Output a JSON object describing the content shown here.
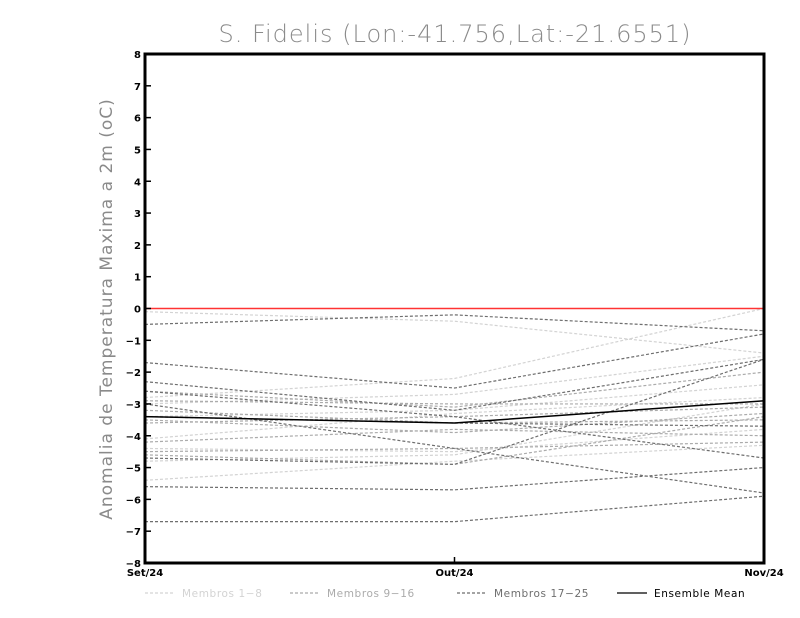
{
  "chart_data": {
    "type": "line",
    "title": "S. Fidelis (Lon:-41.756,Lat:-21.6551)",
    "ylabel": "Anomalia de Temperatura Maxima a 2m (oC)",
    "xlabel": "",
    "categories": [
      "Set/24",
      "Out/24",
      "Nov/24"
    ],
    "ylim": [
      -8,
      8
    ],
    "yticks": [
      -8,
      -7,
      -6,
      -5,
      -4,
      -3,
      -2,
      -1,
      0,
      1,
      2,
      3,
      4,
      5,
      6,
      7,
      8
    ],
    "reference_line": {
      "y": 0,
      "color": "#ff3333"
    },
    "grid": false,
    "legend": {
      "position": "bottom",
      "entries": [
        {
          "label": "Membros 1-8",
          "color": "#d3d3d3",
          "style": "dashed"
        },
        {
          "label": "Membros 9-16",
          "color": "#ababab",
          "style": "dashed"
        },
        {
          "label": "Membros 17-25",
          "color": "#6e6e6e",
          "style": "dashed"
        },
        {
          "label": "Ensemble Mean",
          "color": "#000000",
          "style": "solid"
        }
      ]
    },
    "series": [
      {
        "group": 0,
        "values": [
          -0.1,
          -0.4,
          -1.4
        ]
      },
      {
        "group": 0,
        "values": [
          -2.8,
          -2.2,
          0.0
        ]
      },
      {
        "group": 0,
        "values": [
          -3.0,
          -2.7,
          -1.5
        ]
      },
      {
        "group": 0,
        "values": [
          -3.4,
          -3.2,
          -2.4
        ]
      },
      {
        "group": 0,
        "values": [
          -4.1,
          -3.3,
          -2.8
        ]
      },
      {
        "group": 0,
        "values": [
          -4.4,
          -4.5,
          -3.8
        ]
      },
      {
        "group": 0,
        "values": [
          -4.8,
          -4.6,
          -3.0
        ]
      },
      {
        "group": 0,
        "values": [
          -5.4,
          -4.8,
          -4.3
        ]
      },
      {
        "group": 1,
        "values": [
          -2.6,
          -3.1,
          -2.0
        ]
      },
      {
        "group": 1,
        "values": [
          -2.9,
          -3.0,
          -3.0
        ]
      },
      {
        "group": 1,
        "values": [
          -3.2,
          -3.6,
          -3.5
        ]
      },
      {
        "group": 1,
        "values": [
          -3.5,
          -3.9,
          -3.3
        ]
      },
      {
        "group": 1,
        "values": [
          -4.2,
          -3.8,
          -4.0
        ]
      },
      {
        "group": 1,
        "values": [
          -4.5,
          -4.4,
          -4.2
        ]
      },
      {
        "group": 1,
        "values": [
          -4.6,
          -4.9,
          -3.4
        ]
      },
      {
        "group": 1,
        "values": [
          -3.6,
          -3.4,
          -3.1
        ]
      },
      {
        "group": 2,
        "values": [
          -0.5,
          -0.2,
          -0.7
        ]
      },
      {
        "group": 2,
        "values": [
          -1.7,
          -2.5,
          -0.8
        ]
      },
      {
        "group": 2,
        "values": [
          -2.3,
          -3.2,
          -1.6
        ]
      },
      {
        "group": 2,
        "values": [
          -2.6,
          -3.4,
          -4.7
        ]
      },
      {
        "group": 2,
        "values": [
          -3.0,
          -4.4,
          -5.8
        ]
      },
      {
        "group": 2,
        "values": [
          -3.4,
          -3.6,
          -3.7
        ]
      },
      {
        "group": 2,
        "values": [
          -4.7,
          -4.9,
          -1.6
        ]
      },
      {
        "group": 2,
        "values": [
          -5.6,
          -5.7,
          -5.0
        ]
      },
      {
        "group": 2,
        "values": [
          -6.7,
          -6.7,
          -5.9
        ]
      },
      {
        "group": 3,
        "values": [
          -3.4,
          -3.6,
          -2.9
        ]
      }
    ]
  }
}
